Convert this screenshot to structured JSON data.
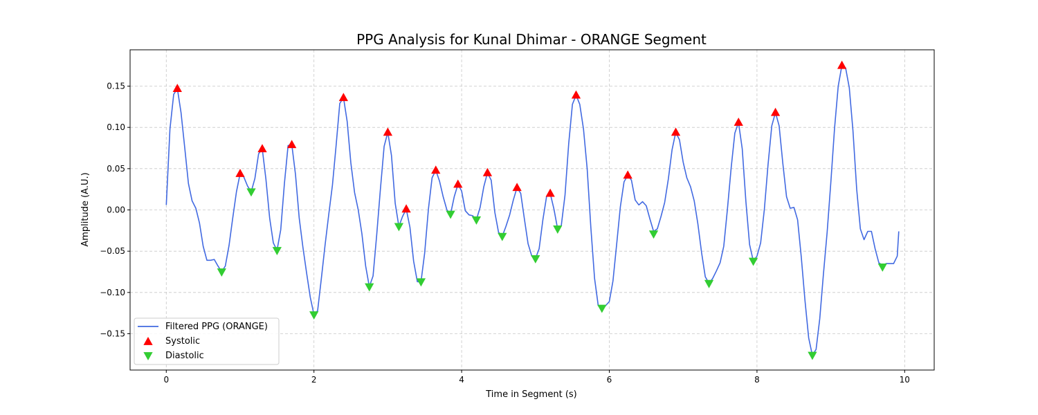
{
  "chart_data": {
    "type": "line",
    "title": "PPG Analysis for Kunal Dhimar - ORANGE Segment",
    "xlabel": "Time in Segment (s)",
    "ylabel": "Amplitude (A.U.)",
    "xlim": [
      -0.49,
      10.4
    ],
    "ylim": [
      -0.194,
      0.194
    ],
    "xticks": [
      0,
      2,
      4,
      6,
      8,
      10
    ],
    "yticks": [
      -0.15,
      -0.1,
      -0.05,
      0.0,
      0.05,
      0.1,
      0.15
    ],
    "ytick_labels": [
      "−0.15",
      "−0.10",
      "−0.05",
      "0.00",
      "0.05",
      "0.10",
      "0.15"
    ],
    "grid": true,
    "legend_position": "bottom-left",
    "colors": {
      "line": "#4169e1",
      "systolic": "#ff0000",
      "diastolic": "#32cd32"
    },
    "series": [
      {
        "name": "Filtered PPG (ORANGE)",
        "type": "line",
        "points": [
          [
            0.0,
            0.006
          ],
          [
            0.05,
            0.098
          ],
          [
            0.1,
            0.14
          ],
          [
            0.15,
            0.147
          ],
          [
            0.2,
            0.118
          ],
          [
            0.25,
            0.075
          ],
          [
            0.3,
            0.032
          ],
          [
            0.35,
            0.011
          ],
          [
            0.4,
            0.002
          ],
          [
            0.45,
            -0.016
          ],
          [
            0.5,
            -0.044
          ],
          [
            0.55,
            -0.061
          ],
          [
            0.6,
            -0.061
          ],
          [
            0.65,
            -0.06
          ],
          [
            0.7,
            -0.068
          ],
          [
            0.75,
            -0.075
          ],
          [
            0.8,
            -0.068
          ],
          [
            0.85,
            -0.043
          ],
          [
            0.9,
            -0.01
          ],
          [
            0.95,
            0.022
          ],
          [
            1.0,
            0.044
          ],
          [
            1.05,
            0.04
          ],
          [
            1.1,
            0.029
          ],
          [
            1.15,
            0.022
          ],
          [
            1.2,
            0.038
          ],
          [
            1.25,
            0.068
          ],
          [
            1.3,
            0.074
          ],
          [
            1.35,
            0.037
          ],
          [
            1.4,
            -0.01
          ],
          [
            1.45,
            -0.04
          ],
          [
            1.5,
            -0.049
          ],
          [
            1.55,
            -0.024
          ],
          [
            1.6,
            0.032
          ],
          [
            1.65,
            0.078
          ],
          [
            1.7,
            0.079
          ],
          [
            1.75,
            0.043
          ],
          [
            1.8,
            -0.01
          ],
          [
            1.85,
            -0.045
          ],
          [
            1.9,
            -0.076
          ],
          [
            1.95,
            -0.106
          ],
          [
            2.0,
            -0.127
          ],
          [
            2.05,
            -0.122
          ],
          [
            2.1,
            -0.083
          ],
          [
            2.15,
            -0.043
          ],
          [
            2.2,
            -0.006
          ],
          [
            2.25,
            0.03
          ],
          [
            2.3,
            0.078
          ],
          [
            2.35,
            0.129
          ],
          [
            2.4,
            0.136
          ],
          [
            2.45,
            0.107
          ],
          [
            2.5,
            0.057
          ],
          [
            2.55,
            0.021
          ],
          [
            2.6,
            0.0
          ],
          [
            2.65,
            -0.029
          ],
          [
            2.7,
            -0.068
          ],
          [
            2.75,
            -0.093
          ],
          [
            2.8,
            -0.08
          ],
          [
            2.85,
            -0.03
          ],
          [
            2.9,
            0.025
          ],
          [
            2.95,
            0.077
          ],
          [
            3.0,
            0.094
          ],
          [
            3.05,
            0.066
          ],
          [
            3.1,
            0.008
          ],
          [
            3.15,
            -0.02
          ],
          [
            3.2,
            -0.008
          ],
          [
            3.25,
            0.001
          ],
          [
            3.3,
            -0.021
          ],
          [
            3.35,
            -0.062
          ],
          [
            3.4,
            -0.087
          ],
          [
            3.45,
            -0.087
          ],
          [
            3.5,
            -0.052
          ],
          [
            3.55,
            0.001
          ],
          [
            3.6,
            0.039
          ],
          [
            3.65,
            0.048
          ],
          [
            3.7,
            0.035
          ],
          [
            3.75,
            0.016
          ],
          [
            3.8,
            0.0
          ],
          [
            3.85,
            -0.005
          ],
          [
            3.9,
            0.016
          ],
          [
            3.95,
            0.031
          ],
          [
            4.0,
            0.023
          ],
          [
            4.05,
            -0.001
          ],
          [
            4.1,
            -0.006
          ],
          [
            4.15,
            -0.007
          ],
          [
            4.2,
            -0.012
          ],
          [
            4.25,
            0.003
          ],
          [
            4.3,
            0.028
          ],
          [
            4.35,
            0.045
          ],
          [
            4.4,
            0.036
          ],
          [
            4.45,
            -0.003
          ],
          [
            4.5,
            -0.027
          ],
          [
            4.55,
            -0.032
          ],
          [
            4.6,
            -0.02
          ],
          [
            4.65,
            -0.006
          ],
          [
            4.7,
            0.012
          ],
          [
            4.75,
            0.027
          ],
          [
            4.8,
            0.02
          ],
          [
            4.85,
            -0.011
          ],
          [
            4.9,
            -0.041
          ],
          [
            4.95,
            -0.056
          ],
          [
            5.0,
            -0.059
          ],
          [
            5.05,
            -0.047
          ],
          [
            5.1,
            -0.012
          ],
          [
            5.15,
            0.016
          ],
          [
            5.2,
            0.02
          ],
          [
            5.25,
            0.001
          ],
          [
            5.3,
            -0.023
          ],
          [
            5.35,
            -0.019
          ],
          [
            5.4,
            0.018
          ],
          [
            5.45,
            0.08
          ],
          [
            5.5,
            0.128
          ],
          [
            5.55,
            0.139
          ],
          [
            5.6,
            0.128
          ],
          [
            5.65,
            0.098
          ],
          [
            5.7,
            0.05
          ],
          [
            5.75,
            -0.021
          ],
          [
            5.8,
            -0.083
          ],
          [
            5.85,
            -0.116
          ],
          [
            5.9,
            -0.119
          ],
          [
            5.95,
            -0.116
          ],
          [
            6.0,
            -0.111
          ],
          [
            6.05,
            -0.086
          ],
          [
            6.1,
            -0.041
          ],
          [
            6.15,
            0.004
          ],
          [
            6.2,
            0.034
          ],
          [
            6.25,
            0.042
          ],
          [
            6.3,
            0.036
          ],
          [
            6.35,
            0.012
          ],
          [
            6.4,
            0.006
          ],
          [
            6.45,
            0.01
          ],
          [
            6.5,
            0.005
          ],
          [
            6.55,
            -0.011
          ],
          [
            6.6,
            -0.026
          ],
          [
            6.65,
            -0.023
          ],
          [
            6.7,
            -0.008
          ],
          [
            6.75,
            0.009
          ],
          [
            6.8,
            0.038
          ],
          [
            6.85,
            0.073
          ],
          [
            6.9,
            0.094
          ],
          [
            6.95,
            0.085
          ],
          [
            7.0,
            0.058
          ],
          [
            7.05,
            0.039
          ],
          [
            7.1,
            0.028
          ],
          [
            7.15,
            0.011
          ],
          [
            7.2,
            -0.017
          ],
          [
            7.25,
            -0.052
          ],
          [
            7.3,
            -0.081
          ],
          [
            7.35,
            -0.089
          ],
          [
            7.4,
            -0.083
          ],
          [
            7.45,
            -0.074
          ],
          [
            7.5,
            -0.064
          ],
          [
            7.55,
            -0.044
          ],
          [
            7.6,
            0.001
          ],
          [
            7.65,
            0.051
          ],
          [
            7.7,
            0.093
          ],
          [
            7.75,
            0.106
          ],
          [
            7.8,
            0.074
          ],
          [
            7.85,
            0.01
          ],
          [
            7.9,
            -0.042
          ],
          [
            7.95,
            -0.062
          ],
          [
            8.0,
            -0.056
          ],
          [
            8.05,
            -0.04
          ],
          [
            8.1,
            0.001
          ],
          [
            8.15,
            0.055
          ],
          [
            8.2,
            0.102
          ],
          [
            8.25,
            0.118
          ],
          [
            8.3,
            0.102
          ],
          [
            8.35,
            0.056
          ],
          [
            8.4,
            0.016
          ],
          [
            8.45,
            0.002
          ],
          [
            8.5,
            0.003
          ],
          [
            8.55,
            -0.012
          ],
          [
            8.6,
            -0.057
          ],
          [
            8.65,
            -0.11
          ],
          [
            8.7,
            -0.155
          ],
          [
            8.75,
            -0.176
          ],
          [
            8.8,
            -0.169
          ],
          [
            8.85,
            -0.132
          ],
          [
            8.9,
            -0.078
          ],
          [
            8.95,
            -0.027
          ],
          [
            9.0,
            0.033
          ],
          [
            9.05,
            0.099
          ],
          [
            9.1,
            0.15
          ],
          [
            9.15,
            0.175
          ],
          [
            9.2,
            0.172
          ],
          [
            9.25,
            0.148
          ],
          [
            9.3,
            0.096
          ],
          [
            9.35,
            0.025
          ],
          [
            9.4,
            -0.023
          ],
          [
            9.45,
            -0.036
          ],
          [
            9.5,
            -0.026
          ],
          [
            9.55,
            -0.026
          ],
          [
            9.6,
            -0.047
          ],
          [
            9.65,
            -0.064
          ],
          [
            9.7,
            -0.067
          ],
          [
            9.75,
            -0.065
          ],
          [
            9.8,
            -0.065
          ],
          [
            9.85,
            -0.065
          ],
          [
            9.9,
            -0.056
          ],
          [
            9.92,
            -0.026
          ]
        ]
      },
      {
        "name": "Systolic",
        "type": "scatter",
        "marker": "triangle-up",
        "points": [
          [
            0.15,
            0.147
          ],
          [
            1.0,
            0.044
          ],
          [
            1.3,
            0.074
          ],
          [
            1.7,
            0.079
          ],
          [
            2.4,
            0.136
          ],
          [
            3.0,
            0.094
          ],
          [
            3.25,
            0.001
          ],
          [
            3.65,
            0.048
          ],
          [
            3.95,
            0.031
          ],
          [
            4.35,
            0.045
          ],
          [
            4.75,
            0.027
          ],
          [
            5.2,
            0.02
          ],
          [
            5.55,
            0.139
          ],
          [
            6.25,
            0.042
          ],
          [
            6.9,
            0.094
          ],
          [
            7.75,
            0.106
          ],
          [
            8.25,
            0.118
          ],
          [
            9.15,
            0.175
          ]
        ]
      },
      {
        "name": "Diastolic",
        "type": "scatter",
        "marker": "triangle-down",
        "points": [
          [
            0.75,
            -0.075
          ],
          [
            1.15,
            0.022
          ],
          [
            1.5,
            -0.049
          ],
          [
            2.0,
            -0.127
          ],
          [
            2.75,
            -0.093
          ],
          [
            3.15,
            -0.02
          ],
          [
            3.45,
            -0.087
          ],
          [
            3.85,
            -0.005
          ],
          [
            4.2,
            -0.012
          ],
          [
            4.55,
            -0.032
          ],
          [
            5.0,
            -0.059
          ],
          [
            5.3,
            -0.023
          ],
          [
            5.9,
            -0.119
          ],
          [
            6.6,
            -0.029
          ],
          [
            7.35,
            -0.089
          ],
          [
            7.95,
            -0.062
          ],
          [
            8.75,
            -0.176
          ],
          [
            9.7,
            -0.069
          ]
        ]
      }
    ]
  }
}
